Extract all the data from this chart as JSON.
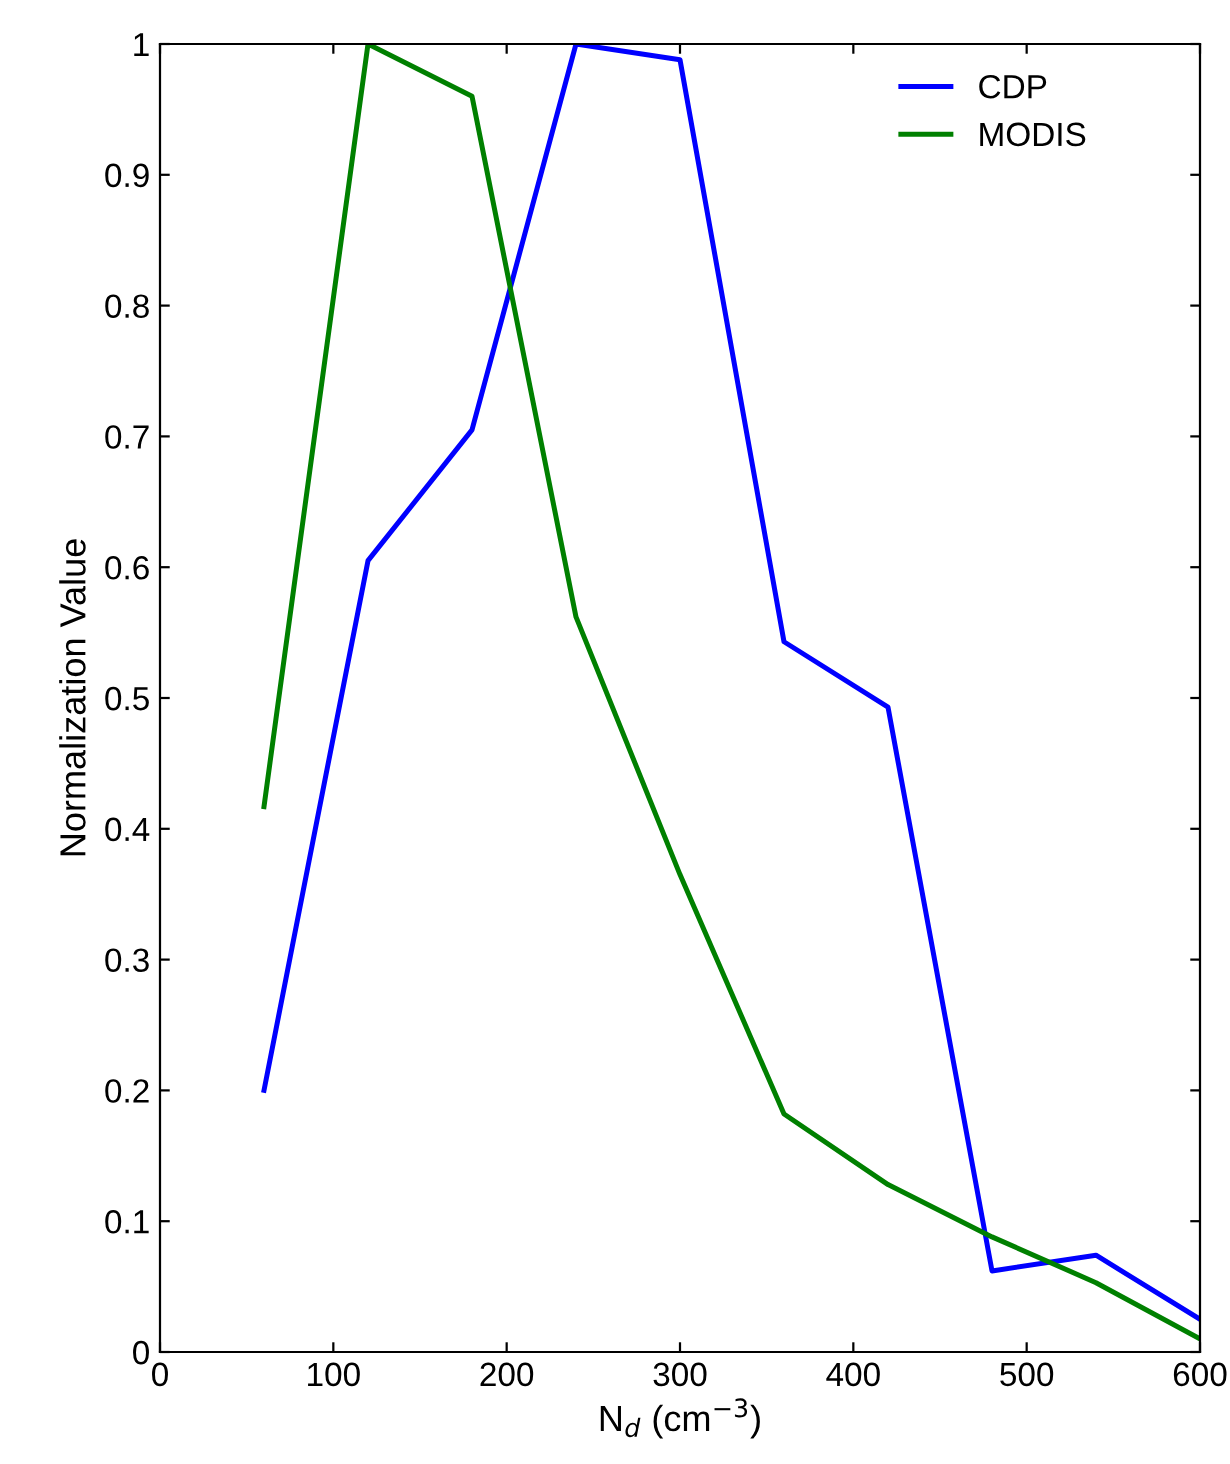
{
  "chart_data": {
    "type": "line",
    "xlabel": "N$_{d}$ (cm$^{−3}$)",
    "ylabel": "Normalization Value",
    "xlim": [
      0,
      600
    ],
    "xticks": [
      0,
      100,
      200,
      300,
      400,
      500,
      600
    ],
    "ylim": [
      0,
      1
    ],
    "yticks": [
      0,
      0.1,
      0.2,
      0.3,
      0.4,
      0.5,
      0.6,
      0.7,
      0.8,
      0.9,
      1
    ],
    "x": [
      60,
      120,
      180,
      240,
      300,
      360,
      420,
      480,
      540,
      600
    ],
    "series": [
      {
        "name": "CDP",
        "color": "#0000ff",
        "values": [
          0.2,
          0.605,
          0.705,
          1.0,
          0.988,
          0.543,
          0.493,
          0.062,
          0.074,
          0.025
        ]
      },
      {
        "name": "MODIS",
        "color": "#008000",
        "values": [
          0.417,
          1.0,
          0.96,
          0.562,
          0.365,
          0.182,
          0.128,
          0.088,
          0.053,
          0.01
        ]
      }
    ],
    "legend": "top right",
    "grid": false,
    "marker": "none",
    "line_style": "solid"
  }
}
